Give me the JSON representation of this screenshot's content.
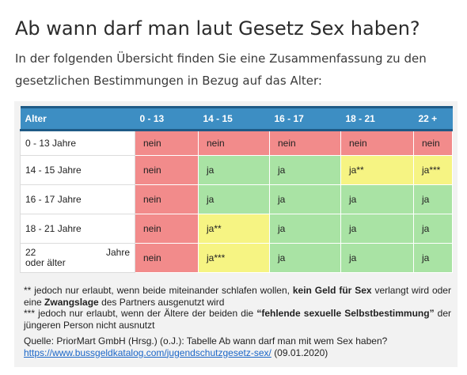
{
  "page": {
    "title": "Ab wann darf man laut Gesetz Sex haben?",
    "intro": "In der folgenden Übersicht finden Sie eine Zusammenfassung zu den gesetzlichen Bestimmungen in Bezug auf das Alter:"
  },
  "table": {
    "header": [
      "Alter",
      "0 - 13",
      "14 - 15",
      "16 - 17",
      "18 - 21",
      "22 +"
    ],
    "rows": [
      {
        "label": "0 - 13 Jahre",
        "cells": [
          "nein",
          "nein",
          "nein",
          "nein",
          "nein"
        ]
      },
      {
        "label": "14 - 15 Jahre",
        "cells": [
          "nein",
          "ja",
          "ja",
          "ja**",
          "ja***"
        ]
      },
      {
        "label": "16 - 17 Jahre",
        "cells": [
          "nein",
          "ja",
          "ja",
          "ja",
          "ja"
        ]
      },
      {
        "label": "18 - 21 Jahre",
        "cells": [
          "nein",
          "ja**",
          "ja",
          "ja",
          "ja"
        ]
      },
      {
        "label_a": "22",
        "label_b": "Jahre",
        "label_c": "oder älter",
        "cells": [
          "nein",
          "ja***",
          "ja",
          "ja",
          "ja"
        ]
      }
    ],
    "colors": {
      "red": "#f28b8b",
      "green": "#a9e3a4",
      "yellow": "#f6f483",
      "header": "#3d8ec3"
    }
  },
  "notes": {
    "note1_prefix": "** jedoch nur erlaubt, wenn beide miteinander schlafen wollen,",
    "note1_bold1": "kein Geld für Sex",
    "note1_mid": "verlangt wird oder eine",
    "note1_bold2": "Zwangslage",
    "note1_suffix": "des Partners ausgenutzt wird",
    "note2_prefix": "*** jedoch nur erlaubt, wenn der Ältere der beiden die",
    "note2_bold": "“fehlende sexuelle Selbstbestimmung”",
    "note2_suffix": "der jüngeren Person nicht ausnutzt",
    "source_text": "Quelle: PriorMart GmbH (Hrsg.) (o.J.): Tabelle Ab wann darf man mit wem Sex haben?",
    "source_link": "https://www.bussgeldkatalog.com/jugendschutzgesetz-sex/",
    "source_date": "(09.01.2020)"
  }
}
